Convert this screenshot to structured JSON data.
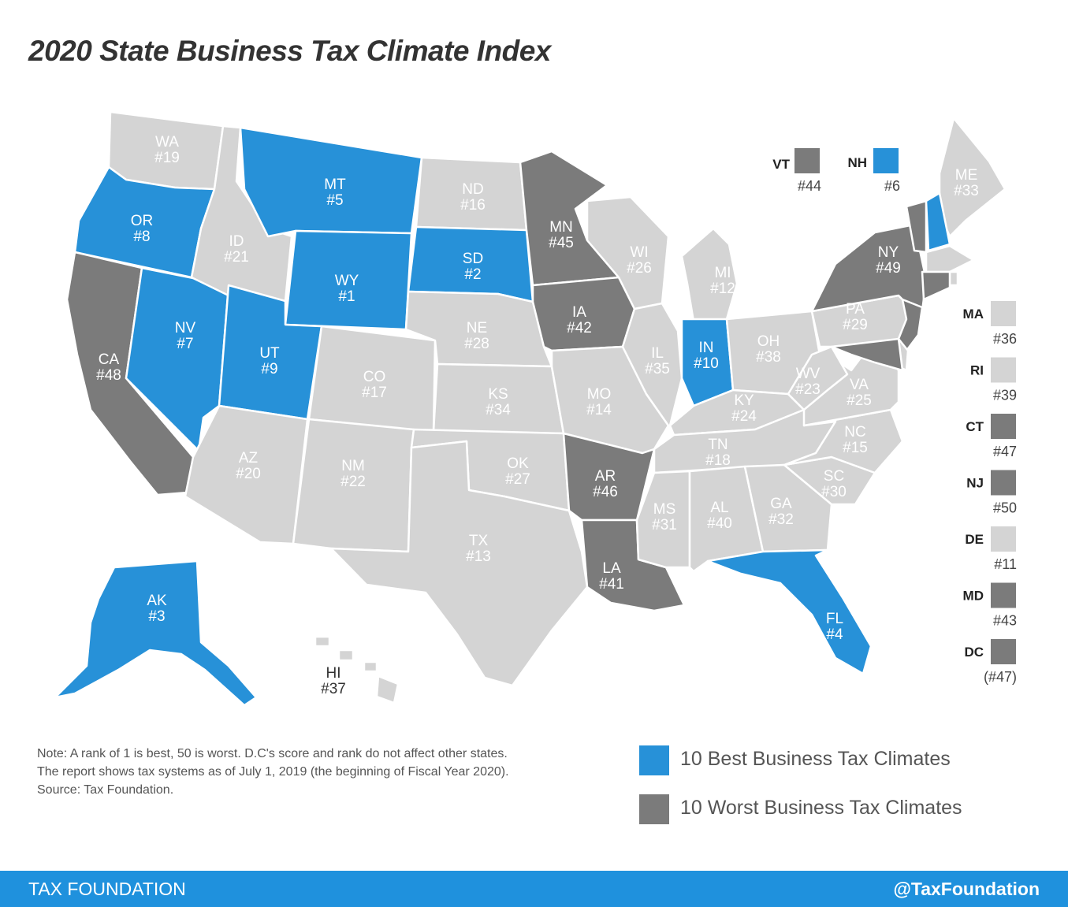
{
  "title": "2020 State Business Tax Climate Index",
  "colors": {
    "best": "#2791d8",
    "worst": "#7b7b7b",
    "other": "#d4d4d4",
    "footer": "#1f91dd"
  },
  "states": {
    "WA": {
      "abbr": "WA",
      "rank": "#19",
      "category": "other"
    },
    "OR": {
      "abbr": "OR",
      "rank": "#8",
      "category": "best"
    },
    "CA": {
      "abbr": "CA",
      "rank": "#48",
      "category": "worst"
    },
    "NV": {
      "abbr": "NV",
      "rank": "#7",
      "category": "best"
    },
    "ID": {
      "abbr": "ID",
      "rank": "#21",
      "category": "other"
    },
    "MT": {
      "abbr": "MT",
      "rank": "#5",
      "category": "best"
    },
    "WY": {
      "abbr": "WY",
      "rank": "#1",
      "category": "best"
    },
    "UT": {
      "abbr": "UT",
      "rank": "#9",
      "category": "best"
    },
    "AZ": {
      "abbr": "AZ",
      "rank": "#20",
      "category": "other"
    },
    "CO": {
      "abbr": "CO",
      "rank": "#17",
      "category": "other"
    },
    "NM": {
      "abbr": "NM",
      "rank": "#22",
      "category": "other"
    },
    "ND": {
      "abbr": "ND",
      "rank": "#16",
      "category": "other"
    },
    "SD": {
      "abbr": "SD",
      "rank": "#2",
      "category": "best"
    },
    "NE": {
      "abbr": "NE",
      "rank": "#28",
      "category": "other"
    },
    "KS": {
      "abbr": "KS",
      "rank": "#34",
      "category": "other"
    },
    "OK": {
      "abbr": "OK",
      "rank": "#27",
      "category": "other"
    },
    "TX": {
      "abbr": "TX",
      "rank": "#13",
      "category": "other"
    },
    "MN": {
      "abbr": "MN",
      "rank": "#45",
      "category": "worst"
    },
    "IA": {
      "abbr": "IA",
      "rank": "#42",
      "category": "worst"
    },
    "MO": {
      "abbr": "MO",
      "rank": "#14",
      "category": "other"
    },
    "AR": {
      "abbr": "AR",
      "rank": "#46",
      "category": "worst"
    },
    "LA": {
      "abbr": "LA",
      "rank": "#41",
      "category": "worst"
    },
    "WI": {
      "abbr": "WI",
      "rank": "#26",
      "category": "other"
    },
    "IL": {
      "abbr": "IL",
      "rank": "#35",
      "category": "other"
    },
    "MI": {
      "abbr": "MI",
      "rank": "#12",
      "category": "other"
    },
    "IN": {
      "abbr": "IN",
      "rank": "#10",
      "category": "best"
    },
    "OH": {
      "abbr": "OH",
      "rank": "#38",
      "category": "other"
    },
    "KY": {
      "abbr": "KY",
      "rank": "#24",
      "category": "other"
    },
    "TN": {
      "abbr": "TN",
      "rank": "#18",
      "category": "other"
    },
    "MS": {
      "abbr": "MS",
      "rank": "#31",
      "category": "other"
    },
    "AL": {
      "abbr": "AL",
      "rank": "#40",
      "category": "other"
    },
    "GA": {
      "abbr": "GA",
      "rank": "#32",
      "category": "other"
    },
    "FL": {
      "abbr": "FL",
      "rank": "#4",
      "category": "best"
    },
    "SC": {
      "abbr": "SC",
      "rank": "#30",
      "category": "other"
    },
    "NC": {
      "abbr": "NC",
      "rank": "#15",
      "category": "other"
    },
    "VA": {
      "abbr": "VA",
      "rank": "#25",
      "category": "other"
    },
    "WV": {
      "abbr": "WV",
      "rank": "#23",
      "category": "other"
    },
    "PA": {
      "abbr": "PA",
      "rank": "#29",
      "category": "other"
    },
    "NY": {
      "abbr": "NY",
      "rank": "#49",
      "category": "worst"
    },
    "ME": {
      "abbr": "ME",
      "rank": "#33",
      "category": "other"
    },
    "AK": {
      "abbr": "AK",
      "rank": "#3",
      "category": "best"
    },
    "HI": {
      "abbr": "HI",
      "rank": "#37",
      "category": "other"
    },
    "VT": {
      "abbr": "VT",
      "rank": "#44",
      "category": "worst"
    },
    "NH": {
      "abbr": "NH",
      "rank": "#6",
      "category": "best"
    },
    "MA": {
      "abbr": "MA",
      "rank": "#36",
      "category": "other"
    },
    "RI": {
      "abbr": "RI",
      "rank": "#39",
      "category": "other"
    },
    "CT": {
      "abbr": "CT",
      "rank": "#47",
      "category": "worst"
    },
    "NJ": {
      "abbr": "NJ",
      "rank": "#50",
      "category": "worst"
    },
    "DE": {
      "abbr": "DE",
      "rank": "#11",
      "category": "other"
    },
    "MD": {
      "abbr": "MD",
      "rank": "#43",
      "category": "worst"
    },
    "DC": {
      "abbr": "DC",
      "rank": "(#47)",
      "category": "worst"
    }
  },
  "note": {
    "line1": "Note: A rank of 1 is best, 50 is worst. D.C's score and rank do not affect other states.",
    "line2": "The report shows tax systems as of July 1, 2019 (the beginning of Fiscal Year 2020).",
    "line3": "Source: Tax Foundation."
  },
  "legend": {
    "best_label": "10 Best Business Tax Climates",
    "worst_label": "10 Worst Business Tax Climates"
  },
  "footer": {
    "left": "TAX FOUNDATION",
    "right": "@TaxFoundation"
  }
}
